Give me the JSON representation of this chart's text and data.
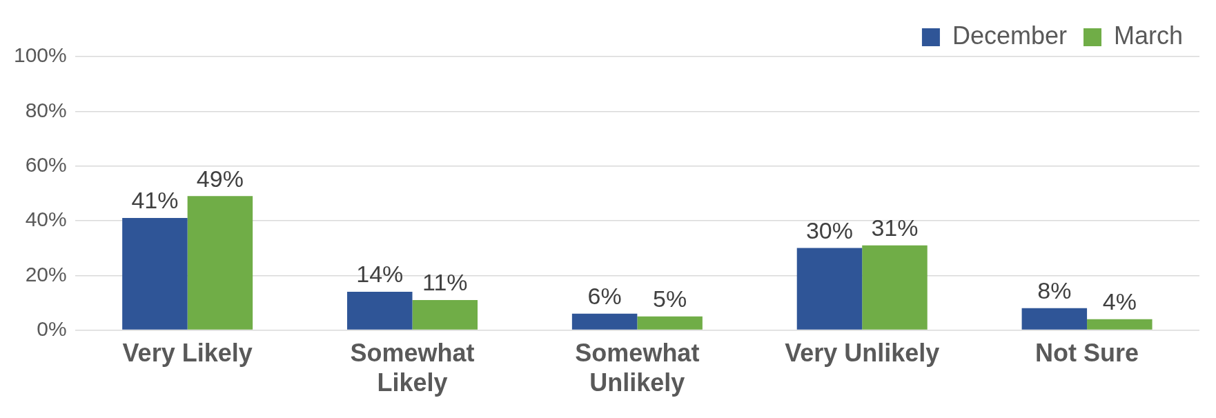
{
  "chart_data": {
    "type": "bar",
    "categories": [
      "Very Likely",
      "Somewhat Likely",
      "Somewhat Unlikely",
      "Very Unlikely",
      "Not Sure"
    ],
    "series": [
      {
        "name": "December",
        "color": "#2f5597",
        "values": [
          41,
          14,
          6,
          30,
          8
        ],
        "value_labels": [
          "41%",
          "14%",
          "6%",
          "30%",
          "8%"
        ]
      },
      {
        "name": "March",
        "color": "#70ad47",
        "values": [
          49,
          11,
          5,
          31,
          4
        ],
        "value_labels": [
          "49%",
          "11%",
          "5%",
          "31%",
          "4%"
        ]
      }
    ],
    "ylim": [
      0,
      100
    ],
    "yticks": [
      {
        "value": 0,
        "label": "0%"
      },
      {
        "value": 20,
        "label": "20%"
      },
      {
        "value": 40,
        "label": "40%"
      },
      {
        "value": 60,
        "label": "60%"
      },
      {
        "value": 80,
        "label": "80%"
      },
      {
        "value": 100,
        "label": "100%"
      }
    ],
    "grid": "y",
    "legend": "top right"
  }
}
